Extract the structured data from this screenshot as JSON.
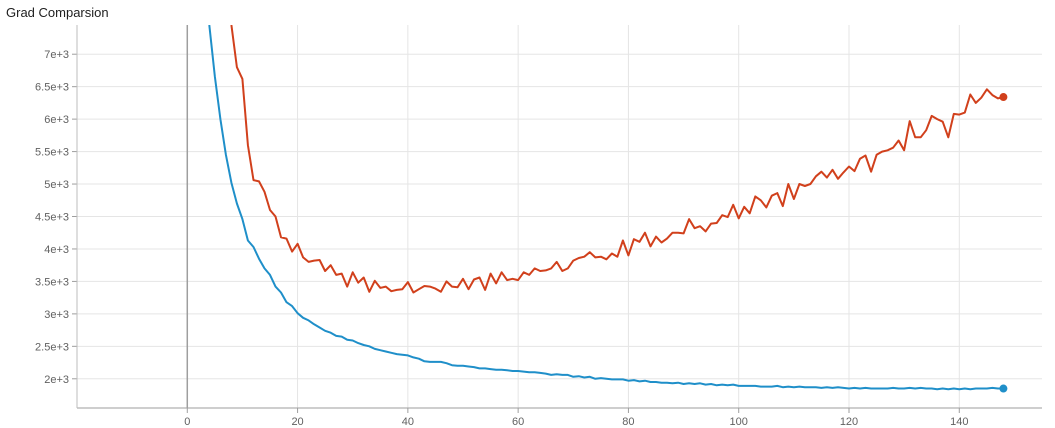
{
  "chart_data": {
    "type": "line",
    "title": "Grad Comparsion",
    "xlim": [
      -20,
      155
    ],
    "ylim": [
      1550,
      7450
    ],
    "xticks": [
      0,
      20,
      40,
      60,
      80,
      100,
      120,
      140
    ],
    "yticks": [
      2000,
      2500,
      3000,
      3500,
      4000,
      4500,
      5000,
      5500,
      6000,
      6500,
      7000
    ],
    "ytick_labels": [
      "2e+3",
      "2.5e+3",
      "3e+3",
      "3.5e+3",
      "4e+3",
      "4.5e+3",
      "5e+3",
      "5.5e+3",
      "6e+3",
      "6.5e+3",
      "7e+3"
    ],
    "grid": true,
    "legend": "none",
    "series": [
      {
        "color": "#d1401c",
        "x": [
          8,
          9,
          10,
          11,
          12,
          13,
          14,
          15,
          16,
          17,
          18,
          19,
          20,
          21,
          22,
          23,
          24,
          25,
          26,
          27,
          28,
          29,
          30,
          31,
          32,
          33,
          34,
          35,
          36,
          37,
          38,
          39,
          40,
          41,
          42,
          43,
          44,
          45,
          46,
          47,
          48,
          49,
          50,
          51,
          52,
          53,
          54,
          55,
          56,
          57,
          58,
          59,
          60,
          61,
          62,
          63,
          64,
          65,
          66,
          67,
          68,
          69,
          70,
          71,
          72,
          73,
          74,
          75,
          76,
          77,
          78,
          79,
          80,
          81,
          82,
          83,
          84,
          85,
          86,
          87,
          88,
          89,
          90,
          91,
          92,
          93,
          94,
          95,
          96,
          97,
          98,
          99,
          100,
          101,
          102,
          103,
          104,
          105,
          106,
          107,
          108,
          109,
          110,
          111,
          112,
          113,
          114,
          115,
          116,
          117,
          118,
          119,
          120,
          121,
          122,
          123,
          124,
          125,
          126,
          127,
          128,
          129,
          130,
          131,
          132,
          133,
          134,
          135,
          136,
          137,
          138,
          139,
          140,
          141,
          142,
          143,
          144,
          145,
          146,
          147,
          148
        ],
        "y": [
          7450,
          6800,
          6620,
          5600,
          5060,
          5040,
          4880,
          4600,
          4500,
          4180,
          4160,
          3960,
          4080,
          3870,
          3800,
          3820,
          3830,
          3660,
          3750,
          3600,
          3620,
          3420,
          3640,
          3480,
          3560,
          3340,
          3510,
          3400,
          3420,
          3350,
          3370,
          3380,
          3490,
          3330,
          3380,
          3430,
          3420,
          3390,
          3340,
          3500,
          3420,
          3410,
          3540,
          3380,
          3530,
          3560,
          3370,
          3620,
          3470,
          3640,
          3520,
          3540,
          3520,
          3640,
          3600,
          3700,
          3660,
          3670,
          3700,
          3800,
          3660,
          3700,
          3820,
          3860,
          3880,
          3950,
          3870,
          3880,
          3840,
          3930,
          3880,
          4130,
          3900,
          4150,
          4110,
          4250,
          4040,
          4190,
          4100,
          4160,
          4250,
          4250,
          4240,
          4460,
          4320,
          4350,
          4270,
          4390,
          4400,
          4520,
          4490,
          4680,
          4470,
          4650,
          4550,
          4810,
          4750,
          4640,
          4820,
          4860,
          4660,
          5000,
          4770,
          5000,
          4970,
          5000,
          5120,
          5190,
          5100,
          5220,
          5080,
          5180,
          5270,
          5200,
          5390,
          5440,
          5190,
          5450,
          5500,
          5520,
          5560,
          5670,
          5520,
          5970,
          5720,
          5720,
          5830,
          6050,
          6000,
          5960,
          5720,
          6080,
          6070,
          6100,
          6380,
          6250,
          6330,
          6460,
          6370,
          6320,
          6340
        ]
      },
      {
        "color": "#1f8fc9",
        "x": [
          4,
          5,
          6,
          7,
          8,
          9,
          10,
          11,
          12,
          13,
          14,
          15,
          16,
          17,
          18,
          19,
          20,
          21,
          22,
          23,
          24,
          25,
          26,
          27,
          28,
          29,
          30,
          31,
          32,
          33,
          34,
          35,
          36,
          37,
          38,
          39,
          40,
          41,
          42,
          43,
          44,
          45,
          46,
          47,
          48,
          49,
          50,
          51,
          52,
          53,
          54,
          55,
          56,
          57,
          58,
          59,
          60,
          61,
          62,
          63,
          64,
          65,
          66,
          67,
          68,
          69,
          70,
          71,
          72,
          73,
          74,
          75,
          76,
          77,
          78,
          79,
          80,
          81,
          82,
          83,
          84,
          85,
          86,
          87,
          88,
          89,
          90,
          91,
          92,
          93,
          94,
          95,
          96,
          97,
          98,
          99,
          100,
          101,
          102,
          103,
          104,
          105,
          106,
          107,
          108,
          109,
          110,
          111,
          112,
          113,
          114,
          115,
          116,
          117,
          118,
          119,
          120,
          121,
          122,
          123,
          124,
          125,
          126,
          127,
          128,
          129,
          130,
          131,
          132,
          133,
          134,
          135,
          136,
          137,
          138,
          139,
          140,
          141,
          142,
          143,
          144,
          145,
          146,
          147,
          148
        ],
        "y": [
          7450,
          6650,
          6000,
          5450,
          5020,
          4700,
          4460,
          4130,
          4030,
          3850,
          3700,
          3600,
          3420,
          3330,
          3180,
          3120,
          3010,
          2940,
          2900,
          2840,
          2790,
          2740,
          2710,
          2660,
          2650,
          2600,
          2590,
          2550,
          2520,
          2500,
          2460,
          2440,
          2420,
          2400,
          2380,
          2370,
          2360,
          2330,
          2310,
          2270,
          2260,
          2260,
          2260,
          2240,
          2210,
          2200,
          2200,
          2190,
          2180,
          2160,
          2160,
          2150,
          2140,
          2140,
          2130,
          2120,
          2120,
          2110,
          2100,
          2100,
          2090,
          2080,
          2060,
          2070,
          2060,
          2060,
          2030,
          2040,
          2020,
          2030,
          2000,
          2010,
          2000,
          1990,
          1990,
          1990,
          1970,
          1980,
          1960,
          1970,
          1950,
          1950,
          1940,
          1940,
          1930,
          1940,
          1920,
          1930,
          1920,
          1930,
          1910,
          1920,
          1900,
          1910,
          1900,
          1910,
          1890,
          1890,
          1890,
          1890,
          1880,
          1880,
          1880,
          1890,
          1870,
          1880,
          1870,
          1880,
          1870,
          1870,
          1870,
          1860,
          1870,
          1860,
          1870,
          1860,
          1850,
          1860,
          1850,
          1860,
          1850,
          1850,
          1850,
          1850,
          1860,
          1850,
          1850,
          1860,
          1850,
          1860,
          1850,
          1850,
          1840,
          1850,
          1840,
          1850,
          1840,
          1850,
          1840,
          1850,
          1850,
          1850,
          1860,
          1850,
          1850
        ]
      }
    ]
  }
}
